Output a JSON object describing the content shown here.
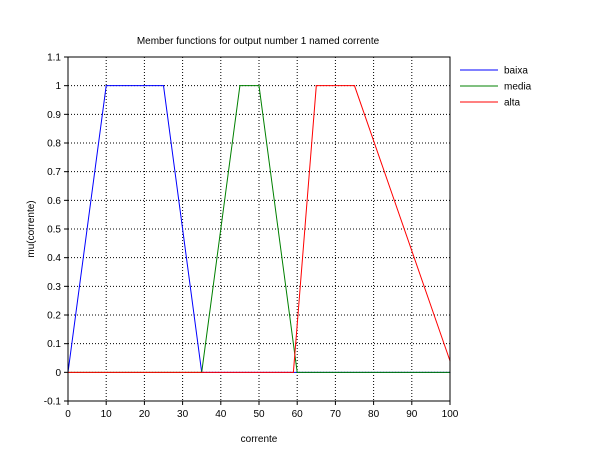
{
  "chart_data": {
    "type": "line",
    "title": "Member functions for output number 1 named corrente",
    "xlabel": "corrente",
    "ylabel": "mu(corrente)",
    "xlim": [
      0,
      100
    ],
    "ylim": [
      -0.1,
      1.1
    ],
    "x_ticks": [
      "0",
      "10",
      "20",
      "30",
      "40",
      "50",
      "60",
      "70",
      "80",
      "90",
      "100"
    ],
    "y_ticks": [
      "-0.1",
      "0",
      "0.1",
      "0.2",
      "0.3",
      "0.4",
      "0.5",
      "0.6",
      "0.7",
      "0.8",
      "0.9",
      "1",
      "1.1"
    ],
    "grid": true,
    "legend_position": "top-right-outside",
    "series": [
      {
        "name": "baixa",
        "color": "#0000ff",
        "points": [
          [
            0,
            0
          ],
          [
            10,
            1
          ],
          [
            25,
            1
          ],
          [
            35,
            0
          ],
          [
            100,
            0
          ]
        ]
      },
      {
        "name": "media",
        "color": "#008000",
        "points": [
          [
            0,
            0
          ],
          [
            35,
            0
          ],
          [
            45,
            1
          ],
          [
            50,
            1
          ],
          [
            60,
            0
          ],
          [
            100,
            0
          ]
        ]
      },
      {
        "name": "alta",
        "color": "#ff0000",
        "points": [
          [
            0,
            0
          ],
          [
            59,
            0
          ],
          [
            65,
            1
          ],
          [
            75,
            1
          ],
          [
            100,
            0.04
          ]
        ]
      }
    ]
  }
}
